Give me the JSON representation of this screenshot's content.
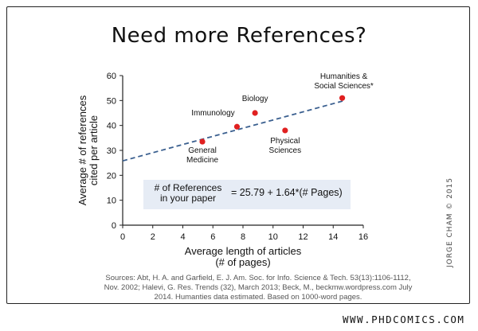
{
  "comic": {
    "title": "Need more References?",
    "sources": "Sources: Abt, H. A. and Garfield, E. J. Am. Soc. for Info. Science & Tech. 53(13):1106-1112, Nov. 2002; Halevi, G. Res. Trends (32), March 2013; Beck, M., beckmw.wordpress.com July 2014. Humanties data estimated. Based on 1000-word pages.",
    "signature": "JORGE CHAM © 2015",
    "url": "WWW.PHDCOMICS.COM"
  },
  "chart_data": {
    "type": "scatter",
    "xlabel": "Average length of articles\n(# of pages)",
    "ylabel": "Average # of references\ncited per article",
    "xlim": [
      0,
      16
    ],
    "ylim": [
      0,
      60
    ],
    "xticks": [
      0,
      2,
      4,
      6,
      8,
      10,
      12,
      14,
      16
    ],
    "yticks": [
      0,
      10,
      20,
      30,
      40,
      50,
      60
    ],
    "grid": false,
    "point_color": "#e02020",
    "trend_color": "#3a5f8f",
    "series": [
      {
        "points": [
          {
            "x": 5.3,
            "y": 33.5,
            "label": "General\nMedicine"
          },
          {
            "x": 7.6,
            "y": 39.5,
            "label": "Immunology"
          },
          {
            "x": 8.8,
            "y": 45,
            "label": "Biology"
          },
          {
            "x": 10.8,
            "y": 38,
            "label": "Physical\nSciences"
          },
          {
            "x": 14.6,
            "y": 51,
            "label": "Humanities &\nSocial Sciences*"
          }
        ]
      }
    ],
    "trendline": {
      "intercept": 25.79,
      "slope": 1.64,
      "x_range": [
        0,
        14.8
      ]
    },
    "annotation": {
      "lhs": "# of References\nin your paper",
      "rhs": "= 25.79 + 1.64*(# Pages)"
    }
  }
}
